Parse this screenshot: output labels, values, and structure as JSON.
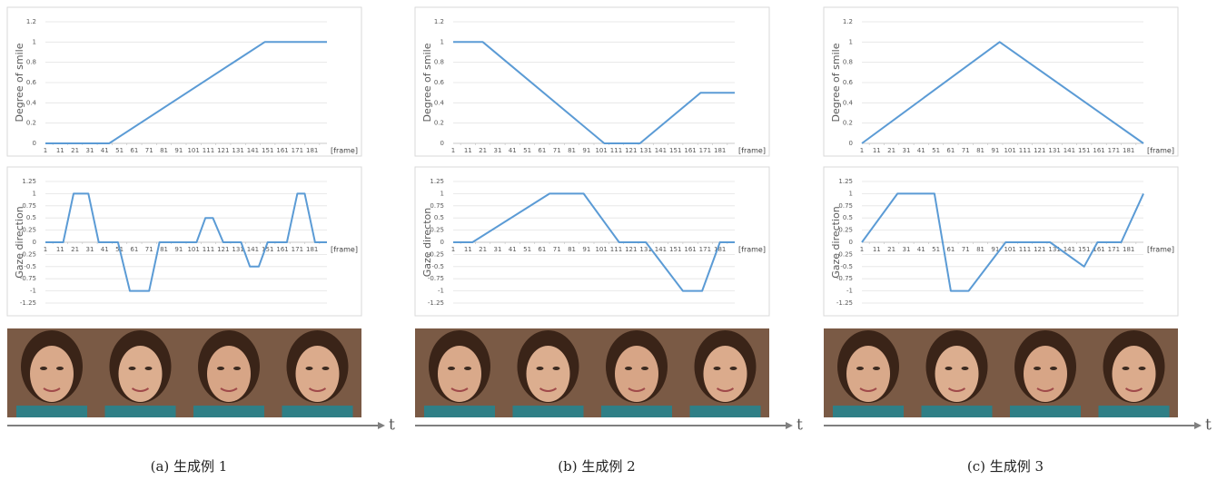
{
  "chart_data": [
    {
      "type": "line",
      "y_label": "Degree of smile",
      "x_label": "[frame]",
      "color": "#5b9bd5",
      "grid": true,
      "x": [
        1,
        44,
        149,
        191
      ],
      "values": [
        0,
        0,
        1,
        1
      ],
      "xlim": [
        1,
        191
      ],
      "xticks": [
        1,
        11,
        21,
        31,
        41,
        51,
        61,
        71,
        81,
        91,
        101,
        111,
        121,
        131,
        141,
        151,
        161,
        171,
        181
      ],
      "ylim": [
        0,
        1.2
      ],
      "yticks": [
        0,
        0.2,
        0.4,
        0.6,
        0.8,
        1,
        1.2
      ]
    },
    {
      "type": "line",
      "y_label": "Gaze direction",
      "x_label": "[frame]",
      "color": "#5b9bd5",
      "grid": true,
      "x": [
        1,
        13,
        20,
        30,
        37,
        50,
        58,
        71,
        78,
        103,
        109,
        114,
        121,
        133,
        139,
        145,
        151,
        164,
        171,
        176,
        183,
        191
      ],
      "values": [
        0,
        0,
        1,
        1,
        0,
        0,
        -1,
        -1,
        0,
        0,
        0.5,
        0.5,
        0,
        0,
        -0.5,
        -0.5,
        0,
        0,
        1,
        1,
        0,
        0
      ],
      "xlim": [
        1,
        191
      ],
      "xticks": [
        1,
        11,
        21,
        31,
        41,
        51,
        61,
        71,
        81,
        91,
        101,
        111,
        121,
        131,
        141,
        151,
        161,
        171,
        181
      ],
      "ylim": [
        -1.25,
        1.25
      ],
      "yticks": [
        -1.25,
        -1,
        -0.75,
        -0.5,
        -0.25,
        0,
        0.25,
        0.5,
        0.75,
        1,
        1.25
      ]
    },
    {
      "type": "line",
      "y_label": "Degree of smile",
      "x_label": "[frame]",
      "color": "#5b9bd5",
      "grid": true,
      "x": [
        1,
        21,
        103,
        127,
        168,
        191
      ],
      "values": [
        1,
        1,
        0,
        0,
        0.5,
        0.5
      ],
      "xlim": [
        1,
        191
      ],
      "xticks": [
        1,
        11,
        21,
        31,
        41,
        51,
        61,
        71,
        81,
        91,
        101,
        111,
        121,
        131,
        141,
        151,
        161,
        171,
        181
      ],
      "ylim": [
        0,
        1.2
      ],
      "yticks": [
        0,
        0.2,
        0.4,
        0.6,
        0.8,
        1,
        1.2
      ]
    },
    {
      "type": "line",
      "y_label": "Gaze directon",
      "x_label": "[frame]",
      "color": "#5b9bd5",
      "grid": true,
      "x": [
        1,
        14,
        66,
        89,
        113,
        131,
        156,
        169,
        181,
        191
      ],
      "values": [
        0,
        0,
        1,
        1,
        0,
        0,
        -1,
        -1,
        0,
        0
      ],
      "xlim": [
        1,
        191
      ],
      "xticks": [
        1,
        11,
        21,
        31,
        41,
        51,
        61,
        71,
        81,
        91,
        101,
        111,
        121,
        131,
        141,
        151,
        161,
        171,
        181
      ],
      "ylim": [
        -1.25,
        1.25
      ],
      "yticks": [
        -1.25,
        -1,
        -0.75,
        -0.5,
        -0.25,
        0,
        0.25,
        0.5,
        0.75,
        1,
        1.25
      ]
    },
    {
      "type": "line",
      "y_label": "Degree of smile",
      "x_label": "[frame]",
      "color": "#5b9bd5",
      "grid": true,
      "x": [
        1,
        94,
        191
      ],
      "values": [
        0,
        1,
        0
      ],
      "xlim": [
        1,
        191
      ],
      "xticks": [
        1,
        11,
        21,
        31,
        41,
        51,
        61,
        71,
        81,
        91,
        101,
        111,
        121,
        131,
        141,
        151,
        161,
        171,
        181
      ],
      "ylim": [
        0,
        1.2
      ],
      "yticks": [
        0,
        0.2,
        0.4,
        0.6,
        0.8,
        1,
        1.2
      ]
    },
    {
      "type": "line",
      "y_label": "Gaze direction",
      "x_label": "[frame]",
      "color": "#5b9bd5",
      "grid": true,
      "x": [
        1,
        25,
        50,
        61,
        73,
        98,
        128,
        151,
        160,
        176,
        191
      ],
      "values": [
        0,
        1,
        1,
        -1,
        -1,
        0,
        0,
        -0.5,
        0,
        0,
        1
      ],
      "xlim": [
        1,
        191
      ],
      "xticks": [
        1,
        11,
        21,
        31,
        41,
        51,
        61,
        71,
        81,
        91,
        101,
        111,
        121,
        131,
        141,
        151,
        161,
        171,
        181
      ],
      "ylim": [
        -1.25,
        1.25
      ],
      "yticks": [
        -1.25,
        -1,
        -0.75,
        -0.5,
        -0.25,
        0,
        0.25,
        0.5,
        0.75,
        1,
        1.25
      ]
    }
  ],
  "time_labels": [
    "t",
    "t",
    "t"
  ],
  "captions": [
    "(a) 生成例 1",
    "(b) 生成例 2",
    "(c) 生成例 3"
  ]
}
